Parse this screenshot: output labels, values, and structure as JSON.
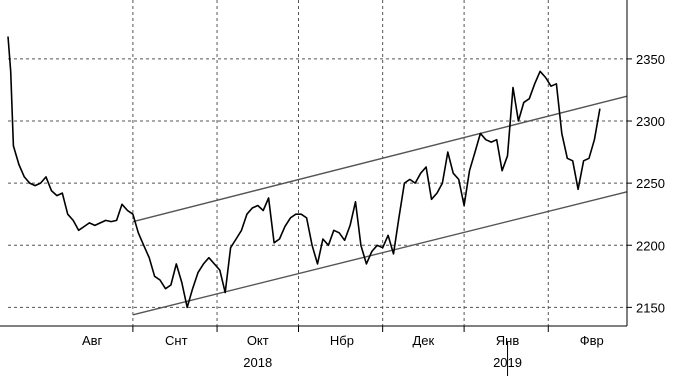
{
  "chart_data": {
    "type": "line",
    "title": "",
    "xlabel": "",
    "ylabel": "",
    "ylim": [
      2135,
      2395
    ],
    "y_ticks": [
      2150,
      2200,
      2250,
      2300,
      2350
    ],
    "y_tick_labels": [
      "2150",
      "2200",
      "2250",
      "2300",
      "2350"
    ],
    "y_axis_side": "right",
    "x_range": [
      "2018-07-01",
      "2019-02-14"
    ],
    "month_labels": [
      {
        "date": "2018-08-01",
        "label": "Авг"
      },
      {
        "date": "2018-09-01",
        "label": "Снт"
      },
      {
        "date": "2018-10-01",
        "label": "Окт"
      },
      {
        "date": "2018-11-01",
        "label": "Нбр"
      },
      {
        "date": "2018-12-01",
        "label": "Дек"
      },
      {
        "date": "2019-01-01",
        "label": "Янв"
      },
      {
        "date": "2019-02-01",
        "label": "Фвр"
      }
    ],
    "month_boundaries": [
      "2018-08-16",
      "2018-09-16",
      "2018-10-16",
      "2018-11-16",
      "2018-12-16",
      "2019-01-16"
    ],
    "year_labels": [
      {
        "date": "2018-10-01",
        "label": "2018"
      },
      {
        "date": "2019-01-01",
        "label": "2019"
      }
    ],
    "year_separator": "2019-01-01",
    "grid": true,
    "series": [
      {
        "points": [
          [
            "2018-07-01",
            2368
          ],
          [
            "2018-07-02",
            2340
          ],
          [
            "2018-07-03",
            2280
          ],
          [
            "2018-07-05",
            2265
          ],
          [
            "2018-07-07",
            2255
          ],
          [
            "2018-07-09",
            2250
          ],
          [
            "2018-07-11",
            2248
          ],
          [
            "2018-07-13",
            2250
          ],
          [
            "2018-07-15",
            2255
          ],
          [
            "2018-07-17",
            2244
          ],
          [
            "2018-07-19",
            2240
          ],
          [
            "2018-07-21",
            2242
          ],
          [
            "2018-07-23",
            2225
          ],
          [
            "2018-07-25",
            2220
          ],
          [
            "2018-07-27",
            2212
          ],
          [
            "2018-07-29",
            2215
          ],
          [
            "2018-07-31",
            2218
          ],
          [
            "2018-08-02",
            2216
          ],
          [
            "2018-08-04",
            2218
          ],
          [
            "2018-08-06",
            2220
          ],
          [
            "2018-08-08",
            2219
          ],
          [
            "2018-08-10",
            2220
          ],
          [
            "2018-08-12",
            2233
          ],
          [
            "2018-08-14",
            2228
          ],
          [
            "2018-08-16",
            2225
          ],
          [
            "2018-08-18",
            2210
          ],
          [
            "2018-08-20",
            2200
          ],
          [
            "2018-08-22",
            2190
          ],
          [
            "2018-08-24",
            2175
          ],
          [
            "2018-08-26",
            2172
          ],
          [
            "2018-08-28",
            2165
          ],
          [
            "2018-08-30",
            2168
          ],
          [
            "2018-09-01",
            2185
          ],
          [
            "2018-09-03",
            2170
          ],
          [
            "2018-09-05",
            2150
          ],
          [
            "2018-09-07",
            2165
          ],
          [
            "2018-09-09",
            2178
          ],
          [
            "2018-09-11",
            2185
          ],
          [
            "2018-09-13",
            2190
          ],
          [
            "2018-09-15",
            2185
          ],
          [
            "2018-09-17",
            2180
          ],
          [
            "2018-09-19",
            2162
          ],
          [
            "2018-09-21",
            2198
          ],
          [
            "2018-09-23",
            2205
          ],
          [
            "2018-09-25",
            2212
          ],
          [
            "2018-09-27",
            2225
          ],
          [
            "2018-09-29",
            2230
          ],
          [
            "2018-10-01",
            2232
          ],
          [
            "2018-10-03",
            2228
          ],
          [
            "2018-10-05",
            2238
          ],
          [
            "2018-10-07",
            2202
          ],
          [
            "2018-10-09",
            2205
          ],
          [
            "2018-10-11",
            2215
          ],
          [
            "2018-10-13",
            2222
          ],
          [
            "2018-10-15",
            2225
          ],
          [
            "2018-10-17",
            2225
          ],
          [
            "2018-10-19",
            2222
          ],
          [
            "2018-10-21",
            2200
          ],
          [
            "2018-10-23",
            2185
          ],
          [
            "2018-10-25",
            2205
          ],
          [
            "2018-10-27",
            2200
          ],
          [
            "2018-10-29",
            2212
          ],
          [
            "2018-10-31",
            2210
          ],
          [
            "2018-11-02",
            2204
          ],
          [
            "2018-11-04",
            2216
          ],
          [
            "2018-11-06",
            2235
          ],
          [
            "2018-11-08",
            2200
          ],
          [
            "2018-11-10",
            2185
          ],
          [
            "2018-11-12",
            2195
          ],
          [
            "2018-11-14",
            2200
          ],
          [
            "2018-11-16",
            2198
          ],
          [
            "2018-11-18",
            2208
          ],
          [
            "2018-11-20",
            2193
          ],
          [
            "2018-11-22",
            2222
          ],
          [
            "2018-11-24",
            2250
          ],
          [
            "2018-11-26",
            2253
          ],
          [
            "2018-11-28",
            2250
          ],
          [
            "2018-11-30",
            2258
          ],
          [
            "2018-12-02",
            2263
          ],
          [
            "2018-12-04",
            2237
          ],
          [
            "2018-12-06",
            2242
          ],
          [
            "2018-12-08",
            2250
          ],
          [
            "2018-12-10",
            2275
          ],
          [
            "2018-12-12",
            2258
          ],
          [
            "2018-12-14",
            2253
          ],
          [
            "2018-12-16",
            2232
          ],
          [
            "2018-12-18",
            2260
          ],
          [
            "2018-12-20",
            2275
          ],
          [
            "2018-12-22",
            2290
          ],
          [
            "2018-12-24",
            2285
          ],
          [
            "2018-12-26",
            2283
          ],
          [
            "2018-12-28",
            2285
          ],
          [
            "2018-12-30",
            2260
          ],
          [
            "2019-01-01",
            2272
          ],
          [
            "2019-01-02",
            2300
          ],
          [
            "2019-01-03",
            2327
          ],
          [
            "2019-01-05",
            2300
          ],
          [
            "2019-01-07",
            2315
          ],
          [
            "2019-01-09",
            2318
          ],
          [
            "2019-01-11",
            2330
          ],
          [
            "2019-01-13",
            2340
          ],
          [
            "2019-01-15",
            2335
          ],
          [
            "2019-01-17",
            2328
          ],
          [
            "2019-01-19",
            2330
          ],
          [
            "2019-01-21",
            2290
          ],
          [
            "2019-01-23",
            2270
          ],
          [
            "2019-01-25",
            2268
          ],
          [
            "2019-01-27",
            2245
          ],
          [
            "2019-01-29",
            2268
          ],
          [
            "2019-01-31",
            2270
          ],
          [
            "2019-02-02",
            2285
          ],
          [
            "2019-02-04",
            2310
          ]
        ]
      }
    ],
    "channel_lines": [
      {
        "start": [
          "2018-08-16",
          2219
        ],
        "end": [
          "2019-02-14",
          2320
        ]
      },
      {
        "start": [
          "2018-08-16",
          2144
        ],
        "end": [
          "2019-02-14",
          2243
        ]
      }
    ]
  }
}
